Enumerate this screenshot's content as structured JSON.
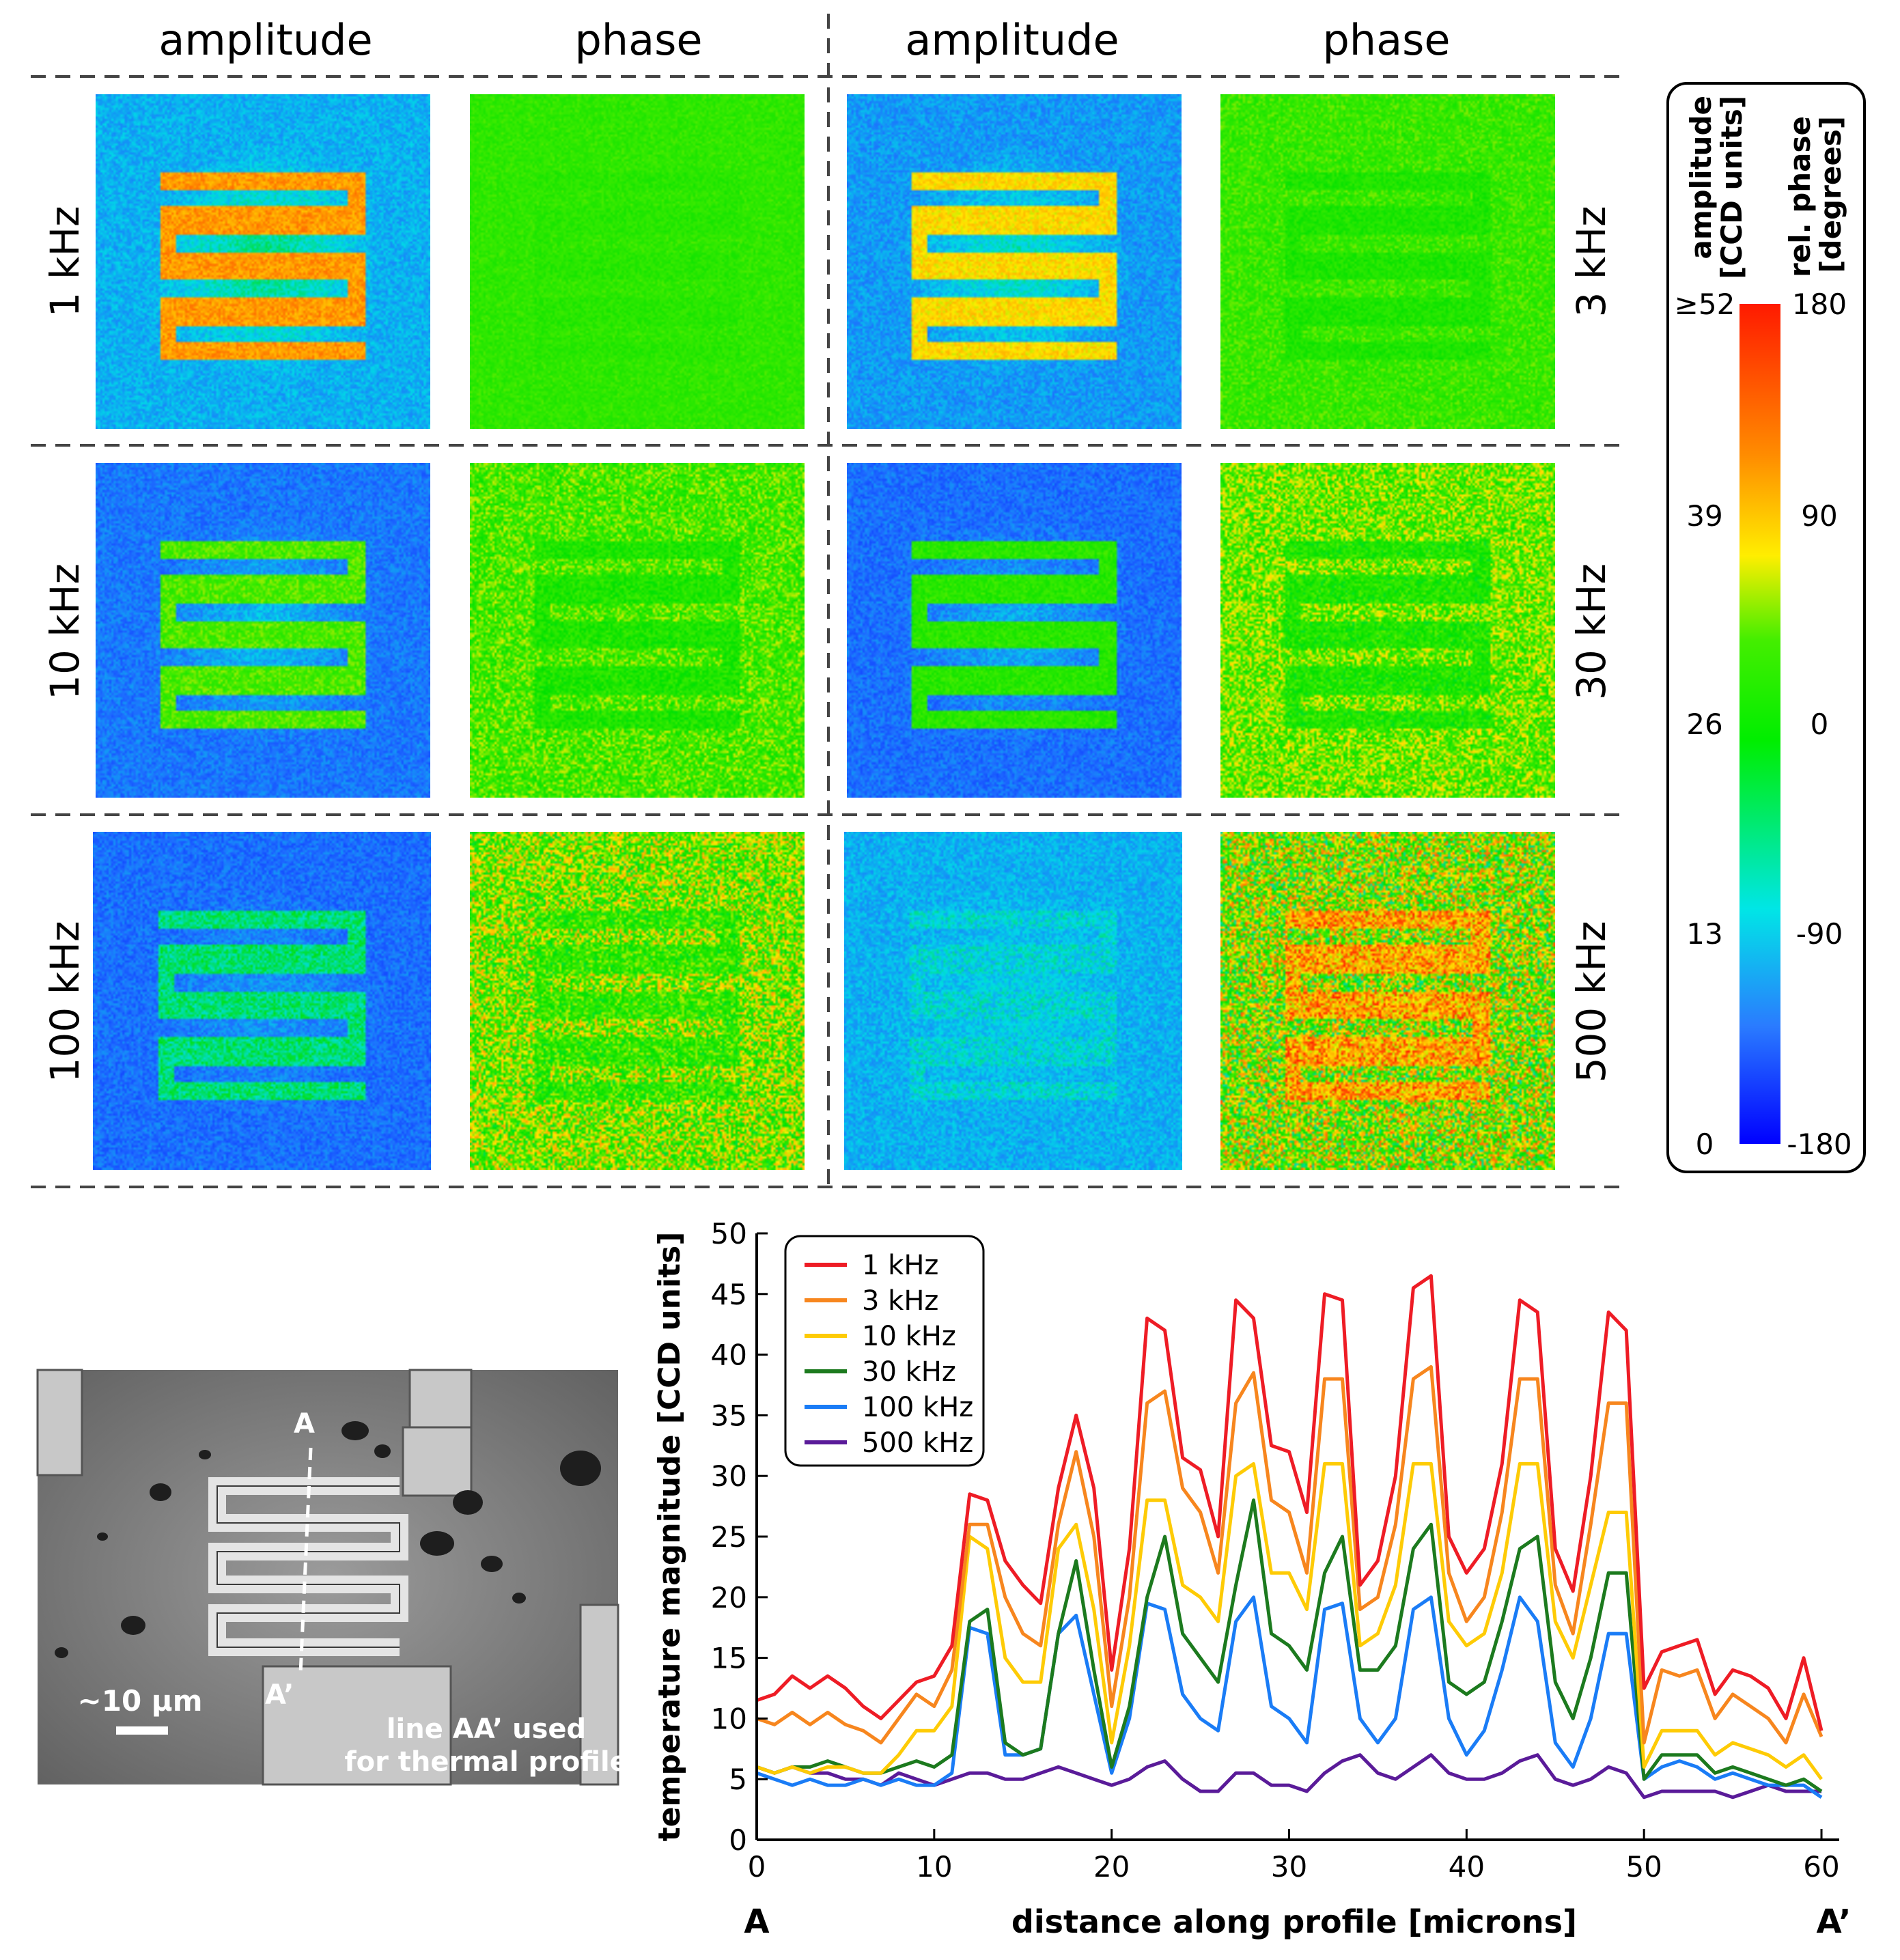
{
  "columns": [
    "amplitude",
    "phase",
    "amplitude",
    "phase"
  ],
  "rows": [
    {
      "left": "1 kHz",
      "right": "3 kHz"
    },
    {
      "left": "10 kHz",
      "right": "30 kHz"
    },
    {
      "left": "100 kHz",
      "right": "500 kHz"
    }
  ],
  "panel_levels": [
    {
      "freq": "1 kHz",
      "amp_bg": -0.55,
      "amp_heat": 0.65,
      "phase_bg": 0.08,
      "phase_heat": 0.05,
      "phase_noise": 0.05
    },
    {
      "freq": "3 kHz",
      "amp_bg": -0.6,
      "amp_heat": 0.45,
      "phase_bg": 0.1,
      "phase_heat": 0.0,
      "phase_noise": 0.07
    },
    {
      "freq": "10 kHz",
      "amp_bg": -0.68,
      "amp_heat": 0.15,
      "phase_bg": 0.12,
      "phase_heat": 0.0,
      "phase_noise": 0.12
    },
    {
      "freq": "30 kHz",
      "amp_bg": -0.7,
      "amp_heat": 0.05,
      "phase_bg": 0.18,
      "phase_heat": 0.0,
      "phase_noise": 0.16
    },
    {
      "freq": "100 kHz",
      "amp_bg": -0.7,
      "amp_heat": -0.3,
      "phase_bg": 0.2,
      "phase_heat": 0.05,
      "phase_noise": 0.22
    },
    {
      "freq": "500 kHz",
      "amp_bg": -0.55,
      "amp_heat": -0.45,
      "phase_bg": 0.22,
      "phase_heat": 0.62,
      "phase_noise": 0.3
    }
  ],
  "colorbar": {
    "amplitude_title": "amplitude",
    "amplitude_unit": "[CCD units]",
    "phase_title": "rel. phase",
    "phase_unit": "[degrees]",
    "amplitude_ticks": [
      "≥52",
      "39",
      "26",
      "13",
      "0"
    ],
    "phase_ticks": [
      "180",
      "90",
      "0",
      "-90",
      "-180"
    ],
    "colors": [
      "#ff1a00",
      "#ff9500",
      "#ffee00",
      "#00e600",
      "#00ff00",
      "#00e6e6",
      "#1e7bff",
      "#0000ff"
    ]
  },
  "micrograph": {
    "label_a": "A",
    "label_a_prime": "A’",
    "scale_label": "~10 μm",
    "caption_line1": "line AA’ used",
    "caption_line2": "for thermal profile"
  },
  "chart_data": {
    "type": "line",
    "ylabel": "temperature magnitude [CCD units]",
    "xlabel": "distance along profile [microns]",
    "x_start_label": "A",
    "x_end_label": "A’",
    "xlim": [
      0,
      61
    ],
    "ylim": [
      0,
      50
    ],
    "x_ticks": [
      0,
      10,
      20,
      30,
      40,
      50,
      60
    ],
    "y_ticks": [
      0,
      5,
      10,
      15,
      20,
      25,
      30,
      35,
      40,
      45,
      50
    ],
    "x": [
      0,
      1,
      2,
      3,
      4,
      5,
      6,
      7,
      8,
      9,
      10,
      11,
      12,
      13,
      14,
      15,
      16,
      17,
      18,
      19,
      20,
      21,
      22,
      23,
      24,
      25,
      26,
      27,
      28,
      29,
      30,
      31,
      32,
      33,
      34,
      35,
      36,
      37,
      38,
      39,
      40,
      41,
      42,
      43,
      44,
      45,
      46,
      47,
      48,
      49,
      50,
      51,
      52,
      53,
      54,
      55,
      56,
      57,
      58,
      59,
      60
    ],
    "series": [
      {
        "name": "1 kHz",
        "color": "#ee1c25",
        "values": [
          11.5,
          12,
          13.5,
          12.5,
          13.5,
          12.5,
          11,
          10,
          11.5,
          13,
          13.5,
          16,
          28.5,
          28,
          23,
          21,
          19.5,
          29,
          35,
          29,
          14,
          24,
          43,
          42,
          31.5,
          30.5,
          25,
          44.5,
          43,
          32.5,
          32,
          27,
          45,
          44.5,
          21,
          23,
          30,
          45.5,
          46.5,
          25,
          22,
          24,
          31,
          44.5,
          43.5,
          24,
          20.5,
          30,
          43.5,
          42,
          12.5,
          15.5,
          16,
          16.5,
          12,
          14,
          13.5,
          12.5,
          10,
          15,
          9
        ]
      },
      {
        "name": "3 kHz",
        "color": "#f7861e",
        "values": [
          10,
          9.5,
          10.5,
          9.5,
          10.5,
          9.5,
          9,
          8,
          10,
          12,
          11,
          14,
          26,
          26,
          20,
          17,
          16,
          26,
          32,
          25,
          11,
          20,
          36,
          37,
          29,
          27,
          22,
          36,
          38.5,
          28,
          27,
          22,
          38,
          38,
          19,
          20,
          26,
          38,
          39,
          22,
          18,
          20,
          27,
          38,
          38,
          21,
          17,
          26,
          36,
          36,
          8,
          14,
          13.5,
          14,
          10,
          12,
          11,
          10,
          8,
          12,
          8.5
        ]
      },
      {
        "name": "10 kHz",
        "color": "#fecb05",
        "values": [
          6,
          5.5,
          6,
          5.5,
          6,
          6,
          5.5,
          5.5,
          7,
          9,
          9,
          11,
          25,
          24,
          15,
          13,
          13,
          24,
          26,
          19,
          8,
          16,
          28,
          28,
          21,
          20,
          18,
          30,
          31,
          22,
          22,
          19,
          31,
          31,
          16,
          17,
          21,
          31,
          31,
          18,
          16,
          17,
          22,
          31,
          31,
          18,
          15,
          21,
          27,
          27,
          6,
          9,
          9,
          9,
          7,
          8,
          7.5,
          7,
          6,
          7,
          5
        ]
      },
      {
        "name": "30 kHz",
        "color": "#1c7a1e",
        "values": [
          6,
          5.5,
          6,
          6,
          6.5,
          6,
          5.5,
          5.5,
          6,
          6.5,
          6,
          7,
          18,
          19,
          8,
          7,
          7.5,
          17,
          23,
          14,
          6,
          11,
          20,
          25,
          17,
          15,
          13,
          21,
          28,
          17,
          16,
          14,
          22,
          25,
          14,
          14,
          16,
          24,
          26,
          13,
          12,
          13,
          18,
          24,
          25,
          13,
          10,
          15,
          22,
          22,
          5,
          7,
          7,
          7,
          5.5,
          6,
          5.5,
          5,
          4.5,
          5,
          4
        ]
      },
      {
        "name": "100 kHz",
        "color": "#1a7cf6",
        "values": [
          5.5,
          5,
          4.5,
          5,
          4.5,
          4.5,
          5,
          4.5,
          5,
          4.5,
          4.5,
          5.5,
          17.5,
          17,
          7,
          7,
          7.5,
          17,
          18.5,
          12,
          5.5,
          10,
          19.5,
          19,
          12,
          10,
          9,
          18,
          20,
          11,
          10,
          8,
          19,
          19.5,
          10,
          8,
          10,
          19,
          20,
          10,
          7,
          9,
          14,
          20,
          18,
          8,
          6,
          10,
          17,
          17,
          5,
          6,
          6.5,
          6,
          5,
          5.5,
          5,
          4.5,
          4.5,
          4.5,
          3.5
        ]
      },
      {
        "name": "500 kHz",
        "color": "#5a1b99",
        "values": [
          6,
          5.5,
          6,
          5.5,
          5.5,
          5,
          5,
          4.5,
          5.5,
          5,
          4.5,
          5,
          5.5,
          5.5,
          5,
          5,
          5.5,
          6,
          5.5,
          5,
          4.5,
          5,
          6,
          6.5,
          5,
          4,
          4,
          5.5,
          5.5,
          4.5,
          4.5,
          4,
          5.5,
          6.5,
          7,
          5.5,
          5,
          6,
          7,
          5.5,
          5,
          5,
          5.5,
          6.5,
          7,
          5,
          4.5,
          5,
          6,
          5.5,
          3.5,
          4,
          4,
          4,
          4,
          3.5,
          4,
          4.5,
          4,
          4,
          4
        ]
      }
    ]
  }
}
